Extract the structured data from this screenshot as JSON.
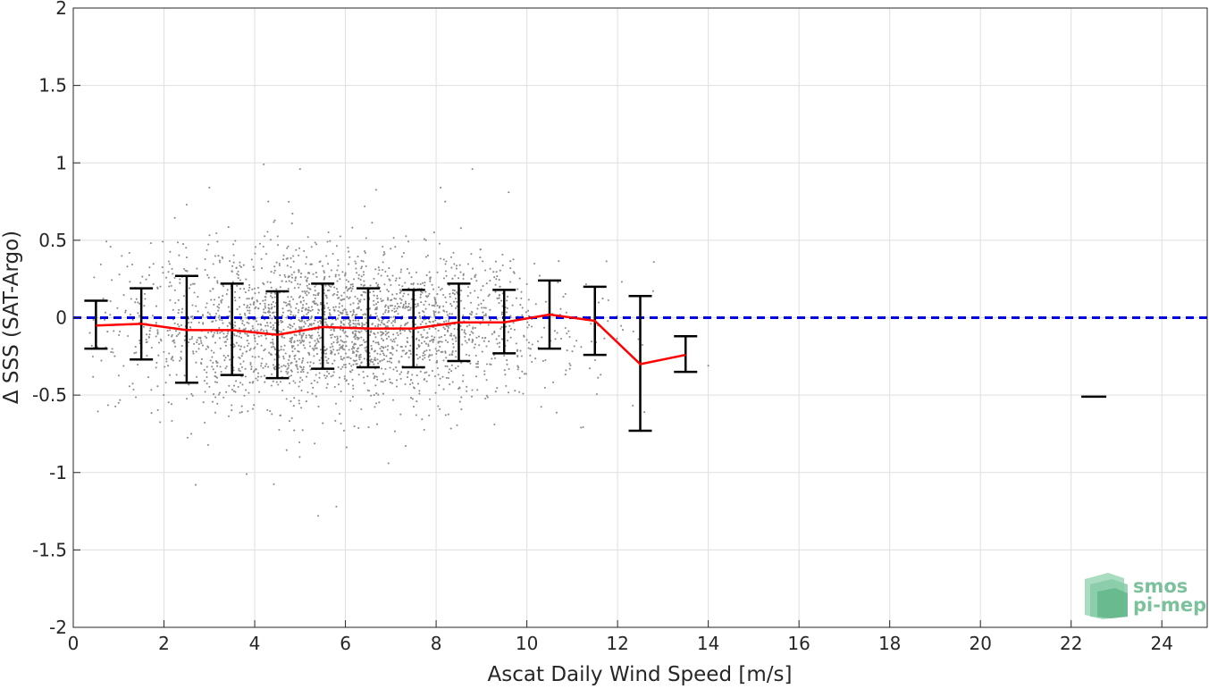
{
  "chart_data": {
    "type": "scatter",
    "xlabel": "Ascat Daily Wind Speed [m/s]",
    "ylabel": "Δ SSS (SAT-Argo)",
    "xlim": [
      0,
      25
    ],
    "ylim": [
      -2,
      2
    ],
    "x_ticks": [
      "0",
      "2",
      "4",
      "6",
      "8",
      "10",
      "12",
      "14",
      "16",
      "18",
      "20",
      "22",
      "24"
    ],
    "y_ticks": [
      "-2",
      "-1.5",
      "-1",
      "-0.5",
      "0",
      "0.5",
      "1",
      "1.5",
      "2"
    ],
    "grid": true,
    "reference_line": {
      "y": 0,
      "style": "dashed",
      "color": "#0000e0"
    },
    "scatter_color": "#8c8c8c",
    "scatter_cloud": {
      "x_range": [
        0.3,
        13.5
      ],
      "center_y": -0.07,
      "spread_y": 0.25
    },
    "scatter_outliers": [
      {
        "x": 4.2,
        "y": 0.99
      },
      {
        "x": 5.0,
        "y": 0.96
      },
      {
        "x": 8.8,
        "y": 0.96
      },
      {
        "x": 3.0,
        "y": 0.84
      },
      {
        "x": 8.1,
        "y": 0.84
      },
      {
        "x": 9.6,
        "y": 0.81
      },
      {
        "x": 2.5,
        "y": 0.73
      },
      {
        "x": 4.3,
        "y": 0.75
      },
      {
        "x": 8.2,
        "y": 0.75
      },
      {
        "x": 12.8,
        "y": 0.36
      },
      {
        "x": 14.0,
        "y": -0.31
      },
      {
        "x": 2.7,
        "y": -1.08
      },
      {
        "x": 5.4,
        "y": -1.28
      },
      {
        "x": 5.8,
        "y": -1.22
      },
      {
        "x": 1.0,
        "y": -0.55
      },
      {
        "x": 2.6,
        "y": -0.75
      }
    ],
    "series": [
      {
        "x": [
          0.5,
          1.5,
          2.5,
          3.5,
          4.5,
          5.5,
          6.5,
          7.5,
          8.5,
          9.5,
          10.5,
          11.5,
          12.5,
          13.5
        ],
        "y": [
          -0.05,
          -0.04,
          -0.08,
          -0.08,
          -0.11,
          -0.06,
          -0.07,
          -0.07,
          -0.03,
          -0.03,
          0.02,
          -0.02,
          -0.3,
          -0.24
        ],
        "color": "#ff0000"
      }
    ],
    "error_bars": {
      "color": "#000000",
      "x": [
        0.5,
        1.5,
        2.5,
        3.5,
        4.5,
        5.5,
        6.5,
        7.5,
        8.5,
        9.5,
        10.5,
        11.5,
        12.5,
        13.5
      ],
      "lower": [
        -0.2,
        -0.27,
        -0.42,
        -0.37,
        -0.39,
        -0.33,
        -0.32,
        -0.32,
        -0.28,
        -0.23,
        -0.2,
        -0.24,
        -0.73,
        -0.35
      ],
      "upper": [
        0.11,
        0.19,
        0.27,
        0.22,
        0.17,
        0.22,
        0.19,
        0.18,
        0.22,
        0.18,
        0.24,
        0.2,
        0.14,
        -0.12
      ]
    },
    "isolated_bin": {
      "x": 22.5,
      "y": -0.51,
      "color": "#000000"
    }
  },
  "logo": {
    "line1": "smos",
    "line2": "pi-mep"
  }
}
